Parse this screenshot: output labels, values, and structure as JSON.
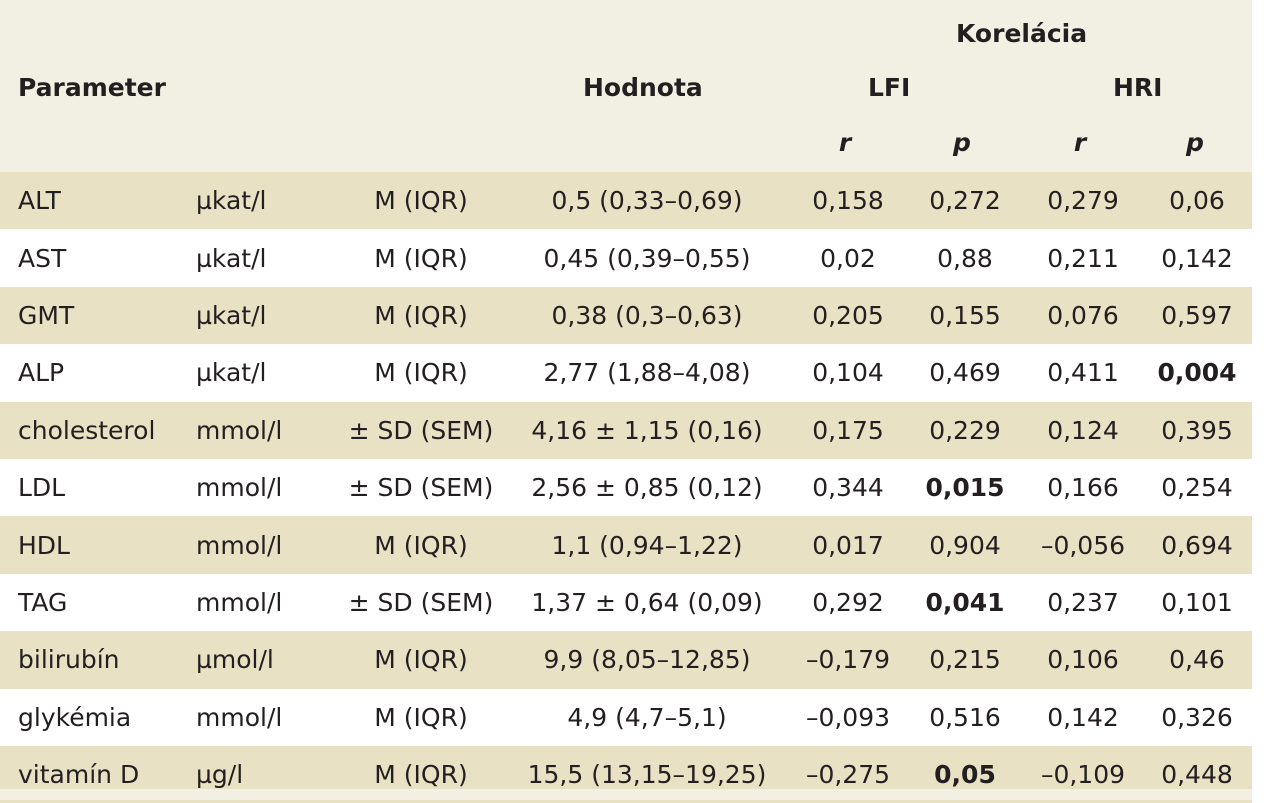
{
  "header": {
    "parameter": "Parameter",
    "hodnota": "Hodnota",
    "korelacia": "Korelácia",
    "lfi": "LFI",
    "hri": "HRI",
    "r": "r",
    "p": "p"
  },
  "rows": [
    {
      "param": "ALT",
      "unit": "µkat/l",
      "stat": "M (IQR)",
      "value": "0,5 (0,33–0,69)",
      "lfi_r": "0,158",
      "lfi_p": "0,272",
      "hri_r": "0,279",
      "hri_p": "0,06"
    },
    {
      "param": "AST",
      "unit": "µkat/l",
      "stat": "M (IQR)",
      "value": "0,45 (0,39–0,55)",
      "lfi_r": "0,02",
      "lfi_p": "0,88",
      "hri_r": "0,211",
      "hri_p": "0,142"
    },
    {
      "param": "GMT",
      "unit": "µkat/l",
      "stat": "M (IQR)",
      "value": "0,38 (0,3–0,63)",
      "lfi_r": "0,205",
      "lfi_p": "0,155",
      "hri_r": "0,076",
      "hri_p": "0,597"
    },
    {
      "param": "ALP",
      "unit": "µkat/l",
      "stat": "M (IQR)",
      "value": "2,77 (1,88–4,08)",
      "lfi_r": "0,104",
      "lfi_p": "0,469",
      "hri_r": "0,411",
      "hri_p": "0,004"
    },
    {
      "param": "cholesterol",
      "unit": "mmol/l",
      "stat": "± SD (SEM)",
      "value": "4,16 ± 1,15 (0,16)",
      "lfi_r": "0,175",
      "lfi_p": "0,229",
      "hri_r": "0,124",
      "hri_p": "0,395"
    },
    {
      "param": "LDL",
      "unit": "mmol/l",
      "stat": "± SD (SEM)",
      "value": "2,56 ± 0,85 (0,12)",
      "lfi_r": "0,344",
      "lfi_p": "0,015",
      "hri_r": "0,166",
      "hri_p": "0,254"
    },
    {
      "param": "HDL",
      "unit": "mmol/l",
      "stat": "M (IQR)",
      "value": "1,1 (0,94–1,22)",
      "lfi_r": "0,017",
      "lfi_p": "0,904",
      "hri_r": "–0,056",
      "hri_p": "0,694"
    },
    {
      "param": "TAG",
      "unit": "mmol/l",
      "stat": "± SD (SEM)",
      "value": "1,37 ± 0,64 (0,09)",
      "lfi_r": "0,292",
      "lfi_p": "0,041",
      "hri_r": "0,237",
      "hri_p": "0,101"
    },
    {
      "param": "bilirubín",
      "unit": "µmol/l",
      "stat": "M (IQR)",
      "value": "9,9 (8,05–12,85)",
      "lfi_r": "–0,179",
      "lfi_p": "0,215",
      "hri_r": "0,106",
      "hri_p": "0,46"
    },
    {
      "param": "glykémia",
      "unit": "mmol/l",
      "stat": "M (IQR)",
      "value": "4,9 (4,7–5,1)",
      "lfi_r": "–0,093",
      "lfi_p": "0,516",
      "hri_r": "0,142",
      "hri_p": "0,326"
    },
    {
      "param": "vitamín D",
      "unit": "µg/l",
      "stat": "M (IQR)",
      "value": "15,5 (13,15–19,25)",
      "lfi_r": "–0,275",
      "lfi_p": "0,05",
      "hri_r": "–0,109",
      "hri_p": "0,448"
    }
  ]
}
